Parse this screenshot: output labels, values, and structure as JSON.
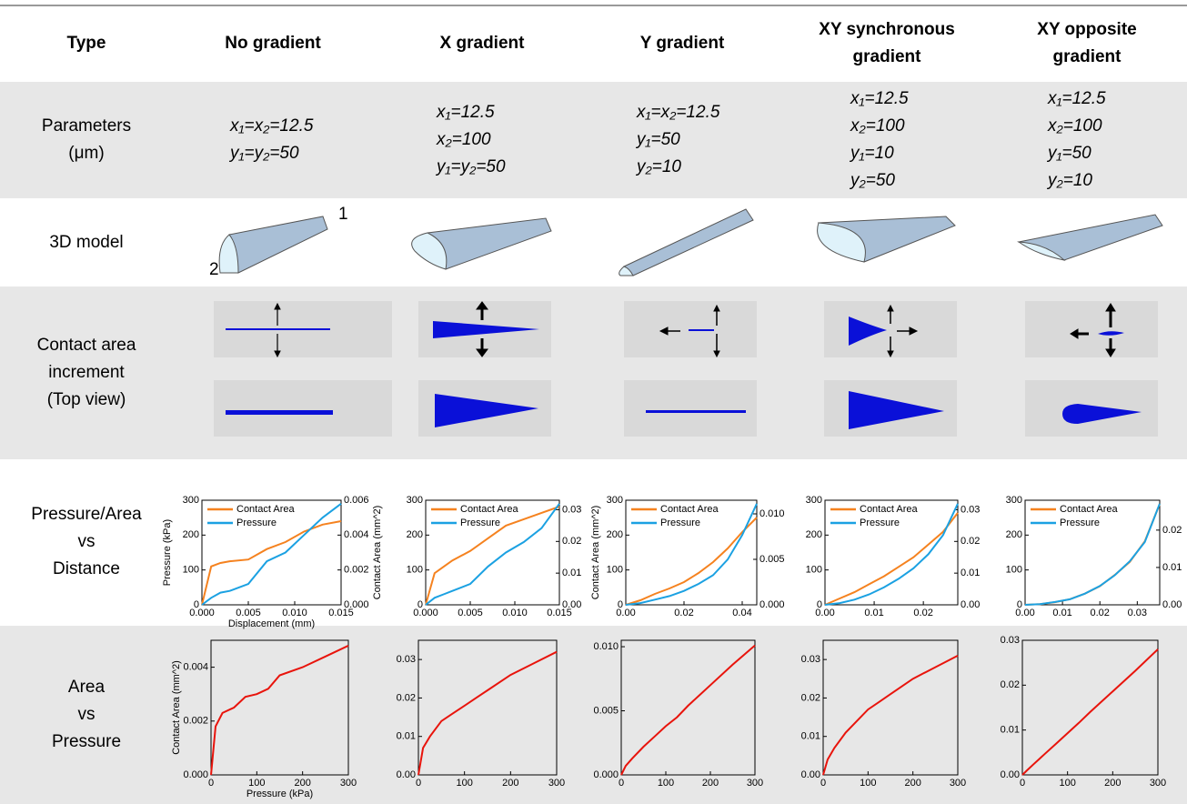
{
  "table": {
    "header": [
      "Type",
      [
        "No gradient"
      ],
      [
        "X gradient"
      ],
      [
        "Y gradient"
      ],
      [
        "XY synchronous",
        "gradient"
      ],
      [
        "XY opposite",
        "gradient"
      ]
    ],
    "row_labels": [
      [
        "Parameters",
        "(μm)"
      ],
      [
        "3D model"
      ],
      [
        "Contact area",
        "increment",
        "(Top view)"
      ],
      [
        "Pressure/Area",
        "vs",
        "Distance"
      ],
      [
        "Area",
        "vs",
        "Pressure"
      ]
    ],
    "parameters": [
      [
        "x₁=x₂=12.5",
        "y₁=y₂=50"
      ],
      [
        "x₁=12.5",
        "x₂=100",
        "y₁=y₂=50"
      ],
      [
        "x₁=x₂=12.5",
        "y₁=50",
        "y₂=10"
      ],
      [
        "x₁=12.5",
        "x₂=100",
        "y₁=10",
        "y₂=50"
      ],
      [
        "x₁=12.5",
        "x₂=100",
        "y₁=50",
        "y₂=10"
      ]
    ],
    "model_marks": [
      "1",
      "2"
    ]
  },
  "chart_data": [
    {
      "type": "line",
      "xlabel": "Displacement (mm)",
      "ylabel": "Pressure (kPa)",
      "y2label": "Contact Area (mm^2)",
      "legend": "upper left",
      "x": [
        0,
        0.001,
        0.002,
        0.003,
        0.005,
        0.007,
        0.009,
        0.011,
        0.013,
        0.015
      ],
      "series": [
        {
          "name": "Contact Area",
          "color": "#f5821f",
          "axis": "y2",
          "values": [
            0,
            0.0022,
            0.0024,
            0.0025,
            0.0026,
            0.0032,
            0.0036,
            0.0042,
            0.0046,
            0.0048
          ]
        },
        {
          "name": "Pressure",
          "color": "#1ba1e2",
          "values": [
            0,
            20,
            35,
            40,
            60,
            125,
            150,
            200,
            250,
            290
          ]
        }
      ],
      "xlim": [
        0,
        0.015
      ],
      "xticks": [
        {
          "value": 0,
          "label": "0.000"
        },
        0.005,
        {
          "value": 0.01,
          "label": "0.010"
        },
        0.015
      ],
      "ylim": [
        0,
        300
      ],
      "yticks": [
        0,
        100,
        200,
        300
      ],
      "y2lim": [
        0,
        0.006
      ],
      "y2ticks": [
        {
          "value": 0,
          "label": "0.000"
        },
        0.002,
        0.004,
        0.006
      ]
    },
    {
      "type": "line",
      "y2label": "Contact Area (mm^2)",
      "legend": "upper left",
      "x": [
        0,
        0.001,
        0.002,
        0.003,
        0.005,
        0.007,
        0.009,
        0.011,
        0.013,
        0.015
      ],
      "series": [
        {
          "name": "Contact Area",
          "color": "#f5821f",
          "axis": "y2",
          "values": [
            0,
            0.01,
            0.012,
            0.014,
            0.017,
            0.021,
            0.025,
            0.027,
            0.029,
            0.031
          ]
        },
        {
          "name": "Pressure",
          "color": "#1ba1e2",
          "values": [
            0,
            20,
            30,
            40,
            60,
            110,
            150,
            180,
            220,
            290
          ]
        }
      ],
      "xlim": [
        0,
        0.015
      ],
      "xticks": [
        {
          "value": 0,
          "label": "0.000"
        },
        0.005,
        {
          "value": 0.01,
          "label": "0.010"
        },
        0.015
      ],
      "ylim": [
        0,
        300
      ],
      "yticks": [
        0,
        100,
        200,
        300
      ],
      "y2lim": [
        0,
        0.033
      ],
      "y2ticks": [
        {
          "value": 0,
          "label": "0.00"
        },
        0.01,
        0.02,
        0.03
      ]
    },
    {
      "type": "line",
      "legend": "upper left",
      "x": [
        0,
        0.005,
        0.01,
        0.015,
        0.02,
        0.025,
        0.03,
        0.035,
        0.04,
        0.045
      ],
      "series": [
        {
          "name": "Contact Area",
          "color": "#f5821f",
          "axis": "y2",
          "values": [
            0,
            0.0005,
            0.0012,
            0.0018,
            0.0025,
            0.0035,
            0.0047,
            0.0062,
            0.008,
            0.0096
          ]
        },
        {
          "name": "Pressure",
          "color": "#1ba1e2",
          "values": [
            0,
            5,
            15,
            25,
            40,
            60,
            85,
            130,
            200,
            290
          ]
        }
      ],
      "xlim": [
        0,
        0.045
      ],
      "xticks": [
        {
          "value": 0,
          "label": "0.00"
        },
        0.02,
        0.04
      ],
      "ylim": [
        0,
        300
      ],
      "yticks": [
        0,
        100,
        200,
        300
      ],
      "y2lim": [
        0,
        0.0115
      ],
      "y2ticks": [
        {
          "value": 0,
          "label": "0.000"
        },
        0.005,
        {
          "value": 0.01,
          "label": "0.010"
        }
      ]
    },
    {
      "type": "line",
      "legend": "upper left",
      "x": [
        0,
        0.003,
        0.006,
        0.009,
        0.012,
        0.015,
        0.018,
        0.021,
        0.024,
        0.027
      ],
      "series": [
        {
          "name": "Contact Area",
          "color": "#f5821f",
          "axis": "y2",
          "values": [
            0,
            0.002,
            0.004,
            0.0065,
            0.009,
            0.012,
            0.015,
            0.019,
            0.023,
            0.029
          ]
        },
        {
          "name": "Pressure",
          "color": "#1ba1e2",
          "values": [
            0,
            5,
            15,
            30,
            50,
            75,
            105,
            145,
            200,
            290
          ]
        }
      ],
      "xlim": [
        0,
        0.027
      ],
      "xticks": [
        {
          "value": 0,
          "label": "0.00"
        },
        0.01,
        0.02
      ],
      "ylim": [
        0,
        300
      ],
      "yticks": [
        0,
        100,
        200,
        300
      ],
      "y2lim": [
        0,
        0.033
      ],
      "y2ticks": [
        {
          "value": 0,
          "label": "0.00"
        },
        0.01,
        0.02,
        0.03
      ]
    },
    {
      "type": "line",
      "legend": "upper left",
      "x": [
        0,
        0.004,
        0.008,
        0.012,
        0.016,
        0.02,
        0.024,
        0.028,
        0.032,
        0.036
      ],
      "series": [
        {
          "name": "Contact Area",
          "color": "#f5821f",
          "axis": "y2",
          "values": [
            0,
            0.0002,
            0.0007,
            0.0015,
            0.003,
            0.005,
            0.008,
            0.0115,
            0.017,
            0.027
          ]
        },
        {
          "name": "Pressure",
          "color": "#1ba1e2",
          "values": [
            0,
            2,
            8,
            16,
            32,
            54,
            85,
            125,
            180,
            290
          ]
        }
      ],
      "xlim": [
        0,
        0.036
      ],
      "xticks": [
        {
          "value": 0,
          "label": "0.00"
        },
        0.01,
        0.02,
        0.03
      ],
      "ylim": [
        0,
        300
      ],
      "yticks": [
        0,
        100,
        200,
        300
      ],
      "y2lim": [
        0,
        0.028
      ],
      "y2ticks": [
        {
          "value": 0,
          "label": "0.00"
        },
        0.01,
        0.02
      ]
    },
    {
      "type": "line",
      "xlabel": "Pressure (kPa)",
      "ylabel": "Contact Area (mm^2)",
      "color": "#e8140c",
      "x": [
        0,
        10,
        25,
        50,
        75,
        100,
        125,
        150,
        200,
        250,
        300
      ],
      "values": [
        0,
        0.0018,
        0.0023,
        0.0025,
        0.0029,
        0.003,
        0.0032,
        0.0037,
        0.004,
        0.0044,
        0.0048
      ],
      "xlim": [
        0,
        300
      ],
      "xticks": [
        0,
        100,
        200,
        300
      ],
      "ylim": [
        0,
        0.005
      ],
      "yticks": [
        {
          "value": 0,
          "label": "0.000"
        },
        0.002,
        0.004
      ]
    },
    {
      "type": "line",
      "color": "#e8140c",
      "x": [
        0,
        10,
        25,
        50,
        75,
        100,
        125,
        150,
        200,
        250,
        300
      ],
      "values": [
        0,
        0.007,
        0.01,
        0.014,
        0.016,
        0.018,
        0.02,
        0.022,
        0.026,
        0.029,
        0.032
      ],
      "xlim": [
        0,
        300
      ],
      "xticks": [
        0,
        100,
        200,
        300
      ],
      "ylim": [
        0,
        0.035
      ],
      "yticks": [
        {
          "value": 0,
          "label": "0.00"
        },
        0.01,
        0.02,
        0.03
      ]
    },
    {
      "type": "line",
      "color": "#e8140c",
      "x": [
        0,
        10,
        25,
        50,
        75,
        100,
        125,
        150,
        200,
        250,
        300
      ],
      "values": [
        0,
        0.0007,
        0.0013,
        0.0022,
        0.003,
        0.0038,
        0.0045,
        0.0054,
        0.007,
        0.0086,
        0.0101
      ],
      "xlim": [
        0,
        300
      ],
      "xticks": [
        0,
        100,
        200,
        300
      ],
      "ylim": [
        0,
        0.0105
      ],
      "yticks": [
        {
          "value": 0,
          "label": "0.000"
        },
        0.005,
        {
          "value": 0.01,
          "label": "0.010"
        }
      ]
    },
    {
      "type": "line",
      "color": "#e8140c",
      "x": [
        0,
        10,
        25,
        50,
        75,
        100,
        125,
        150,
        200,
        250,
        300
      ],
      "values": [
        0,
        0.004,
        0.007,
        0.011,
        0.014,
        0.017,
        0.019,
        0.021,
        0.025,
        0.028,
        0.031
      ],
      "xlim": [
        0,
        300
      ],
      "xticks": [
        0,
        100,
        200,
        300
      ],
      "ylim": [
        0,
        0.035
      ],
      "yticks": [
        {
          "value": 0,
          "label": "0.00"
        },
        0.01,
        0.02,
        0.03
      ]
    },
    {
      "type": "line",
      "color": "#e8140c",
      "x": [
        0,
        10,
        25,
        50,
        75,
        100,
        125,
        150,
        200,
        250,
        300
      ],
      "values": [
        0,
        0.001,
        0.0024,
        0.0047,
        0.007,
        0.0093,
        0.0116,
        0.014,
        0.0186,
        0.0232,
        0.028
      ],
      "xlim": [
        0,
        300
      ],
      "xticks": [
        0,
        100,
        200,
        300
      ],
      "ylim": [
        0,
        0.03
      ],
      "yticks": [
        {
          "value": 0,
          "label": "0.00"
        },
        0.01,
        0.02,
        0.03
      ]
    }
  ]
}
